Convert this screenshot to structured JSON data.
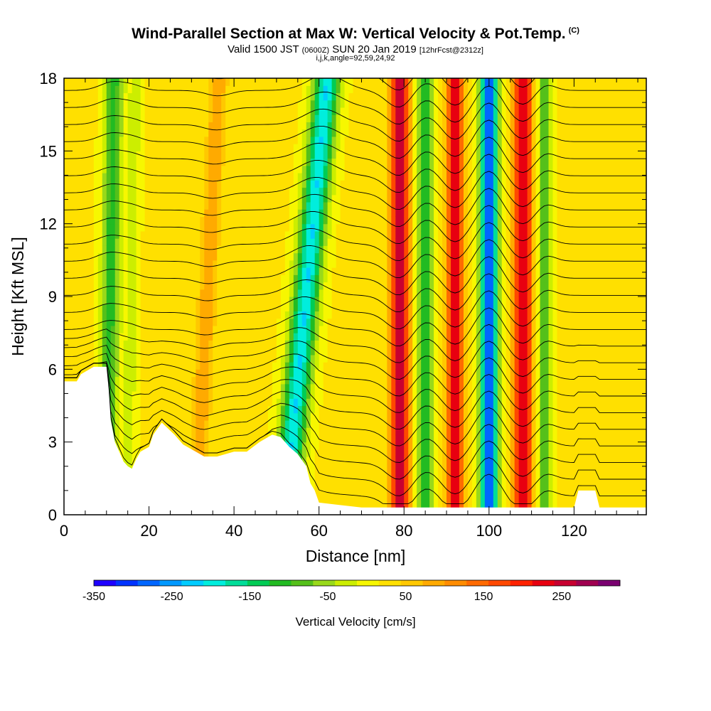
{
  "titles": {
    "main": "Wind-Parallel Section at Max W: Vertical Velocity & Pot.Temp.",
    "copyright": "(C)",
    "valid_prefix": "Valid 1500 JST",
    "valid_utc": "(0600Z)",
    "valid_date": "SUN 20 Jan 2019",
    "forecast": "[12hrFcst@2312z]",
    "indices": "i,j,k,angle=92,59,24,92"
  },
  "chart_data": {
    "type": "heatmap",
    "xlabel": "Distance [nm]",
    "ylabel": "Height [Kft MSL]",
    "xlim": [
      0,
      137
    ],
    "ylim": [
      0,
      18
    ],
    "xticks": [
      0,
      20,
      40,
      60,
      80,
      100,
      120
    ],
    "yticks": [
      0,
      3,
      6,
      9,
      12,
      15,
      18
    ],
    "colorbar": {
      "label": "Vertical Velocity [cm/s]",
      "min": -350,
      "max": 325,
      "ticks": [
        -350,
        -250,
        -150,
        -50,
        50,
        150,
        250
      ],
      "tick_labels": [
        "-350",
        "-250",
        "-150",
        "-50",
        "50",
        "150",
        "250"
      ],
      "colors": [
        "#1e00ff",
        "#0033ff",
        "#0066ff",
        "#0099ff",
        "#00ccff",
        "#00eedd",
        "#00dd99",
        "#00cc55",
        "#22bb22",
        "#55c01a",
        "#99d91a",
        "#ccee00",
        "#f7f700",
        "#ffe000",
        "#ffc800",
        "#ffaa00",
        "#ff8c00",
        "#ff6a00",
        "#ff4800",
        "#ff2200",
        "#e80010",
        "#c80030",
        "#a00050",
        "#7a0070"
      ]
    },
    "vertical_velocity_bands": [
      {
        "x": 10,
        "w_cm_s": -130,
        "width_nm": 2.2,
        "tilt_nm_per_kft": 0.1
      },
      {
        "x": 15,
        "w_cm_s": -50,
        "width_nm": 1.5,
        "tilt_nm_per_kft": 0.1
      },
      {
        "x": 52,
        "w_cm_s": -230,
        "width_nm": 3.0,
        "tilt_nm_per_kft": 0.55
      },
      {
        "x": 31,
        "w_cm_s": 80,
        "width_nm": 2.0,
        "tilt_nm_per_kft": 0.3
      },
      {
        "x": 79,
        "w_cm_s": 260,
        "width_nm": 2.2,
        "tilt_nm_per_kft": 0.0
      },
      {
        "x": 85,
        "w_cm_s": -150,
        "width_nm": 2.0,
        "tilt_nm_per_kft": 0.0
      },
      {
        "x": 92,
        "w_cm_s": 230,
        "width_nm": 2.0,
        "tilt_nm_per_kft": 0.0
      },
      {
        "x": 100,
        "w_cm_s": -330,
        "width_nm": 2.0,
        "tilt_nm_per_kft": 0.0
      },
      {
        "x": 108,
        "w_cm_s": 220,
        "width_nm": 2.2,
        "tilt_nm_per_kft": 0.0
      },
      {
        "x": 113,
        "w_cm_s": -120,
        "width_nm": 1.6,
        "tilt_nm_per_kft": 0.0
      }
    ],
    "terrain_kft": [
      [
        0,
        5.5
      ],
      [
        3,
        5.5
      ],
      [
        4,
        5.8
      ],
      [
        7,
        6.1
      ],
      [
        10,
        6.1
      ],
      [
        10.5,
        5.2
      ],
      [
        11,
        3.9
      ],
      [
        12,
        3.0
      ],
      [
        13,
        2.6
      ],
      [
        14,
        2.2
      ],
      [
        15,
        2.0
      ],
      [
        16,
        1.9
      ],
      [
        17,
        2.3
      ],
      [
        18,
        2.6
      ],
      [
        20,
        2.8
      ],
      [
        21,
        3.3
      ],
      [
        23,
        3.8
      ],
      [
        26,
        3.3
      ],
      [
        28,
        2.9
      ],
      [
        30,
        2.7
      ],
      [
        31,
        2.6
      ],
      [
        33,
        2.4
      ],
      [
        36,
        2.4
      ],
      [
        40,
        2.6
      ],
      [
        43,
        2.6
      ],
      [
        46,
        3.0
      ],
      [
        49,
        3.3
      ],
      [
        51,
        3.2
      ],
      [
        53,
        2.8
      ],
      [
        55,
        2.5
      ],
      [
        57,
        2.0
      ],
      [
        58,
        1.3
      ],
      [
        59,
        1.0
      ],
      [
        60,
        0.5
      ],
      [
        65,
        0.4
      ],
      [
        70,
        0.3
      ],
      [
        80,
        0.3
      ],
      [
        90,
        0.3
      ],
      [
        100,
        0.3
      ],
      [
        120,
        0.3
      ],
      [
        121,
        1.0
      ],
      [
        125,
        1.0
      ],
      [
        126,
        0.3
      ],
      [
        137,
        0.3
      ]
    ],
    "isentrope_count": 26
  }
}
